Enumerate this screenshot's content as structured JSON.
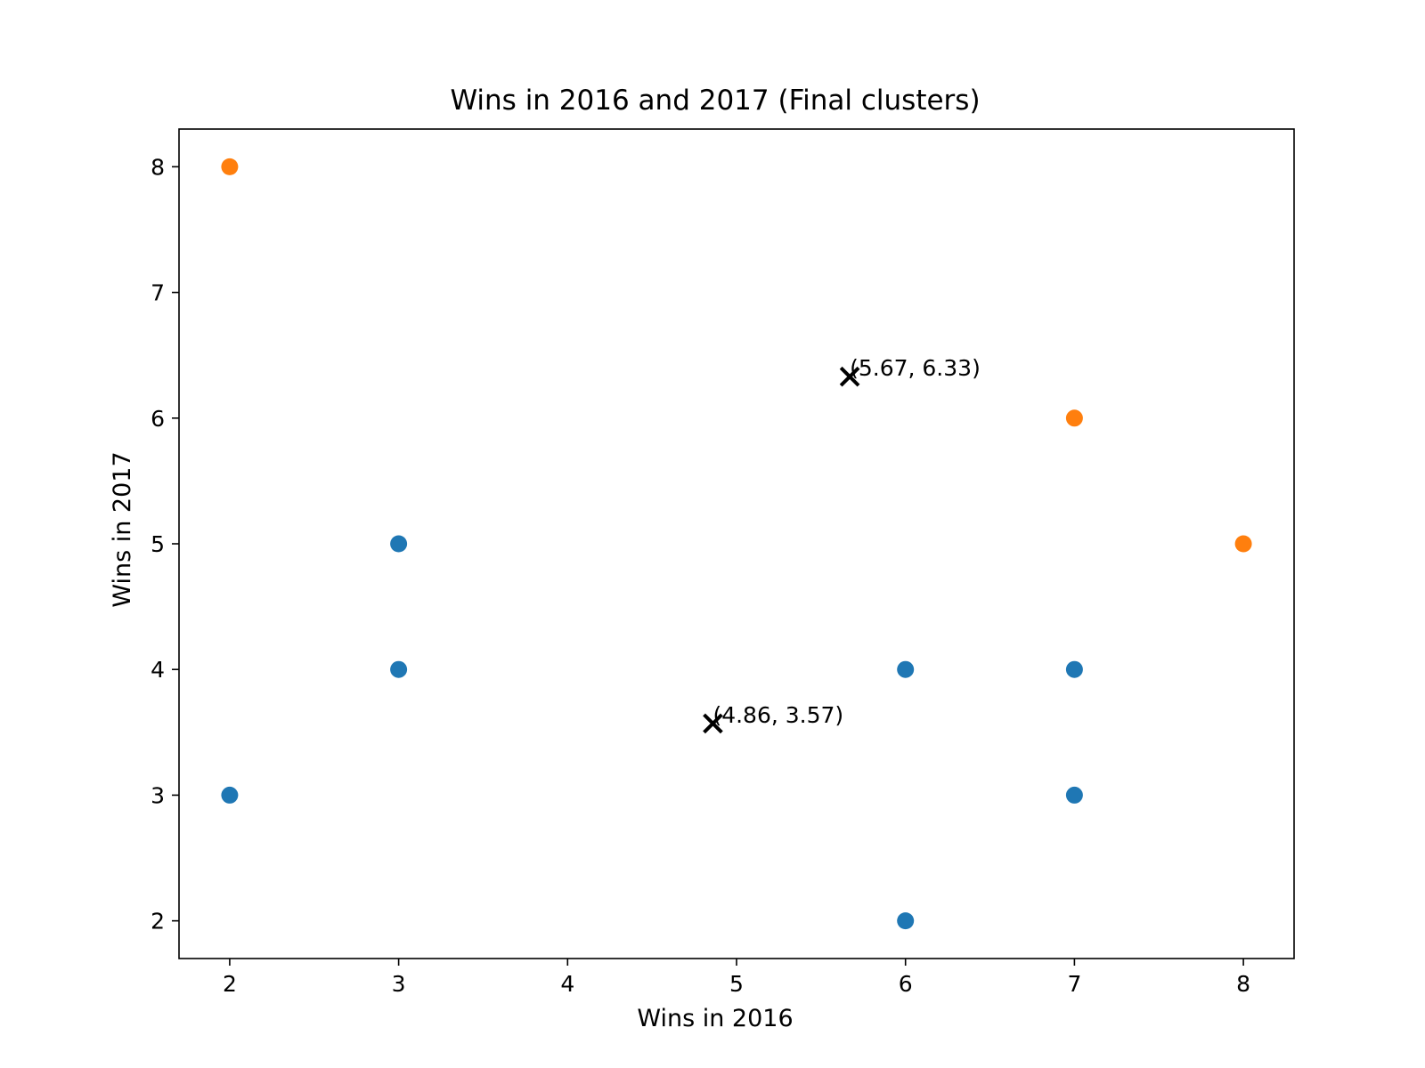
{
  "chart_data": {
    "type": "scatter",
    "title": "Wins in 2016 and 2017 (Final clusters)",
    "xlabel": "Wins in 2016",
    "ylabel": "Wins in 2017",
    "xlim": [
      1.7,
      8.3
    ],
    "ylim": [
      1.7,
      8.3
    ],
    "xticks": [
      2,
      3,
      4,
      5,
      6,
      7,
      8
    ],
    "yticks": [
      2,
      3,
      4,
      5,
      6,
      7,
      8
    ],
    "grid": false,
    "series": [
      {
        "color": "#1f77b4",
        "points": [
          {
            "x": 2,
            "y": 3
          },
          {
            "x": 3,
            "y": 5
          },
          {
            "x": 3,
            "y": 4
          },
          {
            "x": 6,
            "y": 4
          },
          {
            "x": 6,
            "y": 2
          },
          {
            "x": 7,
            "y": 4
          },
          {
            "x": 7,
            "y": 3
          }
        ]
      },
      {
        "color": "#ff7f0e",
        "points": [
          {
            "x": 2,
            "y": 8
          },
          {
            "x": 7,
            "y": 6
          },
          {
            "x": 8,
            "y": 5
          }
        ]
      }
    ],
    "centroids": [
      {
        "x": 4.86,
        "y": 3.57,
        "label": "(4.86, 3.57)",
        "marker": "x",
        "color": "#000000"
      },
      {
        "x": 5.67,
        "y": 6.33,
        "label": "(5.67, 6.33)",
        "marker": "x",
        "color": "#000000"
      }
    ]
  }
}
